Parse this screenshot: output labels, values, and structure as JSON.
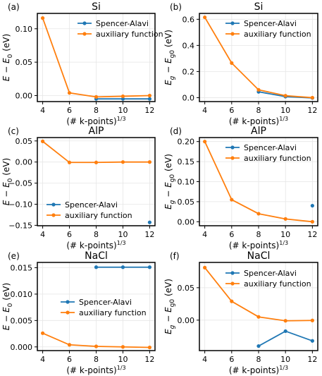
{
  "figure": {
    "xlabel_main": "(# k-points)",
    "xlabel_sup": "1/3"
  },
  "colors": {
    "spencer": "#1f77b4",
    "aux": "#ff7f0e"
  },
  "chart_data": [
    {
      "panel": "(a)",
      "type": "line",
      "title": "Si",
      "ylabel": "E − E0 (eV)",
      "ylabel_parts": [
        "E",
        " − ",
        "E",
        "0",
        " (eV)"
      ],
      "x_ticks": [
        4,
        6,
        8,
        10,
        12
      ],
      "xlim": [
        3.6,
        12.4
      ],
      "y_ticks": [
        0.0,
        0.05,
        0.1
      ],
      "y_tick_labels": [
        "0.00",
        "0.05",
        "0.10"
      ],
      "ylim": [
        -0.009,
        0.123
      ],
      "legend": "top-right",
      "legend_entries": [
        "Spencer-Alavi",
        "auxiliary function"
      ],
      "series": [
        {
          "name": "Spencer-Alavi",
          "x": [
            8,
            10,
            12
          ],
          "y": [
            -0.005,
            -0.005,
            -0.005
          ]
        },
        {
          "name": "auxiliary function",
          "x": [
            4,
            6,
            8,
            10,
            12
          ],
          "y": [
            0.116,
            0.004,
            -0.002,
            -0.001,
            0.0
          ]
        }
      ]
    },
    {
      "panel": "(b)",
      "type": "line",
      "title": "Si",
      "ylabel": "Eg − Eg0 (eV)",
      "x_ticks": [
        4,
        6,
        8,
        10,
        12
      ],
      "xlim": [
        3.6,
        12.4
      ],
      "y_ticks": [
        0.0,
        0.2,
        0.4,
        0.6
      ],
      "y_tick_labels": [
        "0.0",
        "0.2",
        "0.4",
        "0.6"
      ],
      "ylim": [
        -0.03,
        0.645
      ],
      "legend": "top-right",
      "legend_entries": [
        "Spencer-Alavi",
        "auxiliary function"
      ],
      "series": [
        {
          "name": "Spencer-Alavi",
          "x": [
            8,
            10,
            12
          ],
          "y": [
            0.045,
            0.008,
            -0.002
          ]
        },
        {
          "name": "auxiliary function",
          "x": [
            4,
            6,
            8,
            10,
            12
          ],
          "y": [
            0.615,
            0.265,
            0.06,
            0.015,
            0.0
          ]
        }
      ]
    },
    {
      "panel": "(c)",
      "type": "line",
      "title": "AlP",
      "ylabel": "E − E0 (eV)",
      "x_ticks": [
        4,
        6,
        8,
        10,
        12
      ],
      "xlim": [
        3.6,
        12.4
      ],
      "y_ticks": [
        -0.15,
        -0.1,
        -0.05,
        0.0,
        0.05
      ],
      "y_tick_labels": [
        "−0.15",
        "−0.10",
        "−0.05",
        "0.00",
        "0.05"
      ],
      "ylim": [
        -0.151,
        0.058
      ],
      "legend": "bottom-left",
      "legend_entries": [
        "Spencer-Alavi",
        "auxiliary function"
      ],
      "series": [
        {
          "name": "Spencer-Alavi",
          "x": [
            12
          ],
          "y": [
            -0.143
          ]
        },
        {
          "name": "auxiliary function",
          "x": [
            4,
            6,
            8,
            10,
            12
          ],
          "y": [
            0.049,
            -0.001,
            -0.001,
            0.0,
            0.0
          ]
        }
      ]
    },
    {
      "panel": "(d)",
      "type": "line",
      "title": "AlP",
      "ylabel": "Eg − Eg0 (eV)",
      "x_ticks": [
        4,
        6,
        8,
        10,
        12
      ],
      "xlim": [
        3.6,
        12.4
      ],
      "y_ticks": [
        0.0,
        0.05,
        0.1,
        0.15,
        0.2
      ],
      "y_tick_labels": [
        "0.00",
        "0.05",
        "0.10",
        "0.15",
        "0.20"
      ],
      "ylim": [
        -0.01,
        0.21
      ],
      "legend": "top-right",
      "legend_entries": [
        "Spencer-Alavi",
        "auxiliary function"
      ],
      "series": [
        {
          "name": "Spencer-Alavi",
          "x": [
            12
          ],
          "y": [
            0.04
          ]
        },
        {
          "name": "auxiliary function",
          "x": [
            4,
            6,
            8,
            10,
            12
          ],
          "y": [
            0.2,
            0.055,
            0.02,
            0.007,
            0.0
          ]
        }
      ]
    },
    {
      "panel": "(e)",
      "type": "line",
      "title": "NaCl",
      "ylabel": "E − E0 (eV)",
      "x_ticks": [
        4,
        6,
        8,
        10,
        12
      ],
      "xlim": [
        3.6,
        12.4
      ],
      "y_ticks": [
        0.0,
        0.005,
        0.01,
        0.015
      ],
      "y_tick_labels": [
        "0.000",
        "0.005",
        "0.010",
        "0.015"
      ],
      "ylim": [
        -0.0007,
        0.016
      ],
      "legend": "center-right",
      "legend_entries": [
        "Spencer-Alavi",
        "auxiliary function"
      ],
      "series": [
        {
          "name": "Spencer-Alavi",
          "x": [
            8,
            10,
            12
          ],
          "y": [
            0.0151,
            0.0151,
            0.0151
          ]
        },
        {
          "name": "auxiliary function",
          "x": [
            4,
            6,
            8,
            10,
            12
          ],
          "y": [
            0.0026,
            0.0004,
            0.0001,
            0.0,
            -0.0001
          ]
        }
      ]
    },
    {
      "panel": "(f)",
      "type": "line",
      "title": "NaCl",
      "ylabel": "Eg − Eg0 (eV)",
      "x_ticks": [
        4,
        6,
        8,
        10,
        12
      ],
      "xlim": [
        3.6,
        12.4
      ],
      "y_ticks": [
        0.0,
        0.05
      ],
      "y_tick_labels": [
        "0.00",
        "0.05"
      ],
      "ylim": [
        -0.047,
        0.089
      ],
      "legend": "top-right",
      "legend_entries": [
        "Spencer-Alavi",
        "auxiliary function"
      ],
      "series": [
        {
          "name": "Spencer-Alavi",
          "x": [
            8,
            10,
            12
          ],
          "y": [
            -0.04,
            -0.017,
            -0.032
          ]
        },
        {
          "name": "auxiliary function",
          "x": [
            4,
            6,
            8,
            10,
            12
          ],
          "y": [
            0.081,
            0.029,
            0.005,
            -0.001,
            -0.0005
          ]
        }
      ]
    }
  ]
}
